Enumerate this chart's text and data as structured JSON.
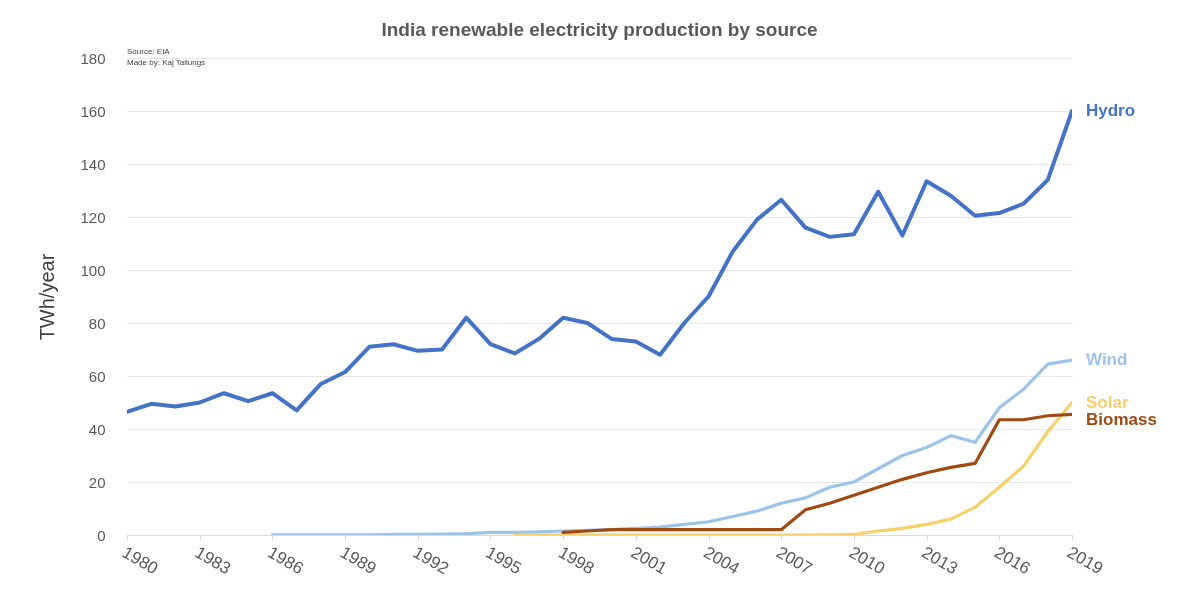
{
  "chart_data": {
    "type": "line",
    "title": "India renewable electricity production by source",
    "ylabel": "TWh/year",
    "annotations": [
      "Source: EIA",
      "Made by: Kaj Tallungs"
    ],
    "xlim": [
      1980,
      2019
    ],
    "xticks": [
      1980,
      1983,
      1986,
      1989,
      1992,
      1995,
      1998,
      2001,
      2004,
      2007,
      2010,
      2013,
      2016,
      2019
    ],
    "ylim": [
      0,
      180
    ],
    "yticks": [
      0,
      20,
      40,
      60,
      80,
      100,
      120,
      140,
      160,
      180
    ],
    "grid": "y",
    "legend": false,
    "marker": "none",
    "line_style": "solid",
    "series": [
      {
        "name": "Hydro",
        "color": "#4472c4",
        "x": [
          1980,
          1981,
          1982,
          1983,
          1984,
          1985,
          1986,
          1987,
          1988,
          1989,
          1990,
          1991,
          1992,
          1993,
          1994,
          1995,
          1996,
          1997,
          1998,
          1999,
          2000,
          2001,
          2002,
          2003,
          2004,
          2005,
          2006,
          2007,
          2008,
          2009,
          2010,
          2011,
          2012,
          2013,
          2014,
          2015,
          2016,
          2017,
          2018,
          2019
        ],
        "values": [
          46.5,
          49.5,
          48.5,
          50,
          53.5,
          50.5,
          53.5,
          47,
          57,
          61.5,
          71,
          72,
          69.5,
          70,
          82,
          72,
          68.5,
          74,
          82,
          80,
          74,
          73,
          68,
          80,
          90,
          107,
          119,
          126.5,
          116,
          112.5,
          113.5,
          129.5,
          113,
          133.5,
          128,
          120.5,
          121.5,
          125,
          134,
          160
        ]
      },
      {
        "name": "Wind",
        "color": "#9dc3e6",
        "x": [
          1986,
          1987,
          1988,
          1989,
          1990,
          1991,
          1992,
          1993,
          1994,
          1995,
          1996,
          1997,
          1998,
          1999,
          2000,
          2001,
          2002,
          2003,
          2004,
          2005,
          2006,
          2007,
          2008,
          2009,
          2010,
          2011,
          2012,
          2013,
          2014,
          2015,
          2016,
          2017,
          2018,
          2019
        ],
        "values": [
          0.1,
          0.1,
          0.1,
          0.1,
          0.1,
          0.2,
          0.2,
          0.3,
          0.5,
          1,
          1,
          1.2,
          1.5,
          1.8,
          2,
          2.5,
          3,
          4,
          5,
          7,
          9,
          12,
          14,
          18,
          20,
          25,
          30,
          33,
          37.5,
          35,
          48,
          55,
          64.5,
          66
        ]
      },
      {
        "name": "Solar",
        "color": "#f5d06b",
        "x": [
          1996,
          1997,
          1998,
          1999,
          2000,
          2001,
          2002,
          2003,
          2004,
          2005,
          2006,
          2007,
          2008,
          2009,
          2010,
          2011,
          2012,
          2013,
          2014,
          2015,
          2016,
          2017,
          2018,
          2019
        ],
        "values": [
          0,
          0,
          0,
          0,
          0,
          0,
          0,
          0,
          0,
          0,
          0,
          0,
          0,
          0.1,
          0.2,
          1.5,
          2.5,
          4,
          6,
          10.5,
          18,
          26,
          39,
          50
        ]
      },
      {
        "name": "Biomass",
        "color": "#9e4a12",
        "x": [
          1998,
          1999,
          2000,
          2001,
          2002,
          2003,
          2004,
          2005,
          2006,
          2007,
          2008,
          2009,
          2010,
          2011,
          2012,
          2013,
          2014,
          2015,
          2016,
          2017,
          2018,
          2019
        ],
        "values": [
          1,
          1.5,
          2,
          2,
          2,
          2,
          2,
          2,
          2,
          2,
          9.5,
          12,
          15,
          18,
          21,
          23.5,
          25.5,
          27,
          43.5,
          43.5,
          45,
          45.5
        ]
      }
    ]
  }
}
